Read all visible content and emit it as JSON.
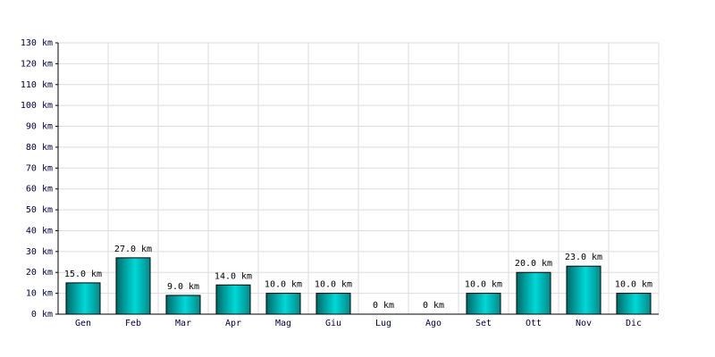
{
  "chart_data": {
    "type": "bar",
    "categories": [
      "Gen",
      "Feb",
      "Mar",
      "Apr",
      "Mag",
      "Giu",
      "Lug",
      "Ago",
      "Set",
      "Ott",
      "Nov",
      "Dic"
    ],
    "values": [
      15,
      27,
      9,
      14,
      10,
      10,
      0,
      0,
      10,
      20,
      23,
      10
    ],
    "value_labels": [
      "15.0 km",
      "27.0 km",
      "9.0 km",
      "14.0 km",
      "10.0 km",
      "10.0 km",
      "0 km",
      "0 km",
      "10.0 km",
      "20.0 km",
      "23.0 km",
      "10.0 km"
    ],
    "color": "#00d8d8",
    "ylim": [
      0,
      130
    ],
    "yticks": [
      {
        "value": 0,
        "label": "0 km"
      },
      {
        "value": 10,
        "label": "10 km"
      },
      {
        "value": 20,
        "label": "20 km"
      },
      {
        "value": 30,
        "label": "30 km"
      },
      {
        "value": 40,
        "label": "40 km"
      },
      {
        "value": 50,
        "label": "50 km"
      },
      {
        "value": 60,
        "label": "60 km"
      },
      {
        "value": 70,
        "label": "70 km"
      },
      {
        "value": 80,
        "label": "80 km"
      },
      {
        "value": 90,
        "label": "90 km"
      },
      {
        "value": 100,
        "label": "100 km"
      },
      {
        "value": 110,
        "label": "110 km"
      },
      {
        "value": 120,
        "label": "120 km"
      },
      {
        "value": 130,
        "label": "130 km"
      }
    ],
    "grid": true
  }
}
